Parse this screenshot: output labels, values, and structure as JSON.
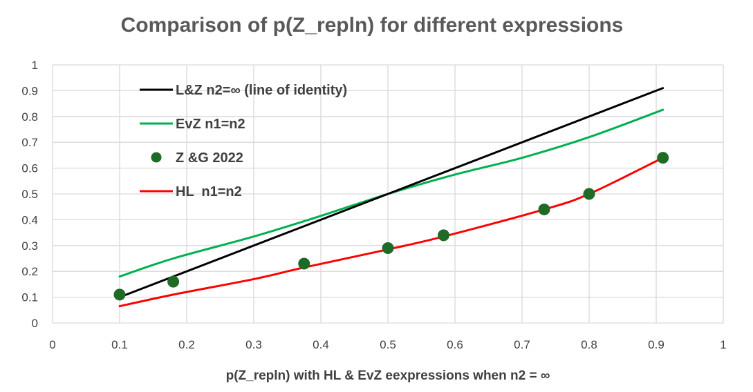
{
  "chart_data": {
    "type": "line",
    "title": "Comparison of p(Z_repln) for different expressions",
    "xlabel": "p(Z_repln) with HL & EvZ eexpressions when n2 = ∞",
    "ylabel": "",
    "xlim": [
      0,
      1
    ],
    "ylim": [
      0,
      1
    ],
    "grid": true,
    "legend_position": "top-left",
    "x_ticks": [
      "0",
      "0.1",
      "0.2",
      "0.3",
      "0.4",
      "0.5",
      "0.6",
      "0.7",
      "0.8",
      "0.9",
      "1"
    ],
    "y_ticks": [
      "0",
      "0.1",
      "0.2",
      "0.3",
      "0.4",
      "0.5",
      "0.6",
      "0.7",
      "0.8",
      "0.9",
      "1"
    ],
    "x_tick_values": [
      0,
      0.1,
      0.2,
      0.3,
      0.4,
      0.5,
      0.6,
      0.7,
      0.8,
      0.9,
      1
    ],
    "y_tick_values": [
      0,
      0.1,
      0.2,
      0.3,
      0.4,
      0.5,
      0.6,
      0.7,
      0.8,
      0.9,
      1
    ],
    "series": [
      {
        "name": "L&Z n2=∞ (line of identity)",
        "kind": "line",
        "color": "#000000",
        "x": [
          0.1,
          0.91
        ],
        "y": [
          0.1,
          0.91
        ]
      },
      {
        "name": "EvZ n1=n2",
        "kind": "line",
        "color": "#00b050",
        "x": [
          0.1,
          0.18,
          0.3,
          0.4,
          0.5,
          0.6,
          0.7,
          0.8,
          0.91
        ],
        "y": [
          0.18,
          0.25,
          0.335,
          0.415,
          0.5,
          0.575,
          0.64,
          0.72,
          0.826
        ]
      },
      {
        "name": "Z &G 2022",
        "kind": "scatter",
        "color": "#1e6b26",
        "x": [
          0.1,
          0.18,
          0.375,
          0.5,
          0.583,
          0.733,
          0.8,
          0.91
        ],
        "y": [
          0.11,
          0.16,
          0.23,
          0.29,
          0.34,
          0.44,
          0.5,
          0.64
        ]
      },
      {
        "name": "HL  n1=n2",
        "kind": "line",
        "color": "#ff0000",
        "x": [
          0.1,
          0.18,
          0.3,
          0.375,
          0.5,
          0.583,
          0.733,
          0.8,
          0.91
        ],
        "y": [
          0.065,
          0.11,
          0.17,
          0.215,
          0.285,
          0.335,
          0.44,
          0.5,
          0.64
        ]
      }
    ]
  }
}
